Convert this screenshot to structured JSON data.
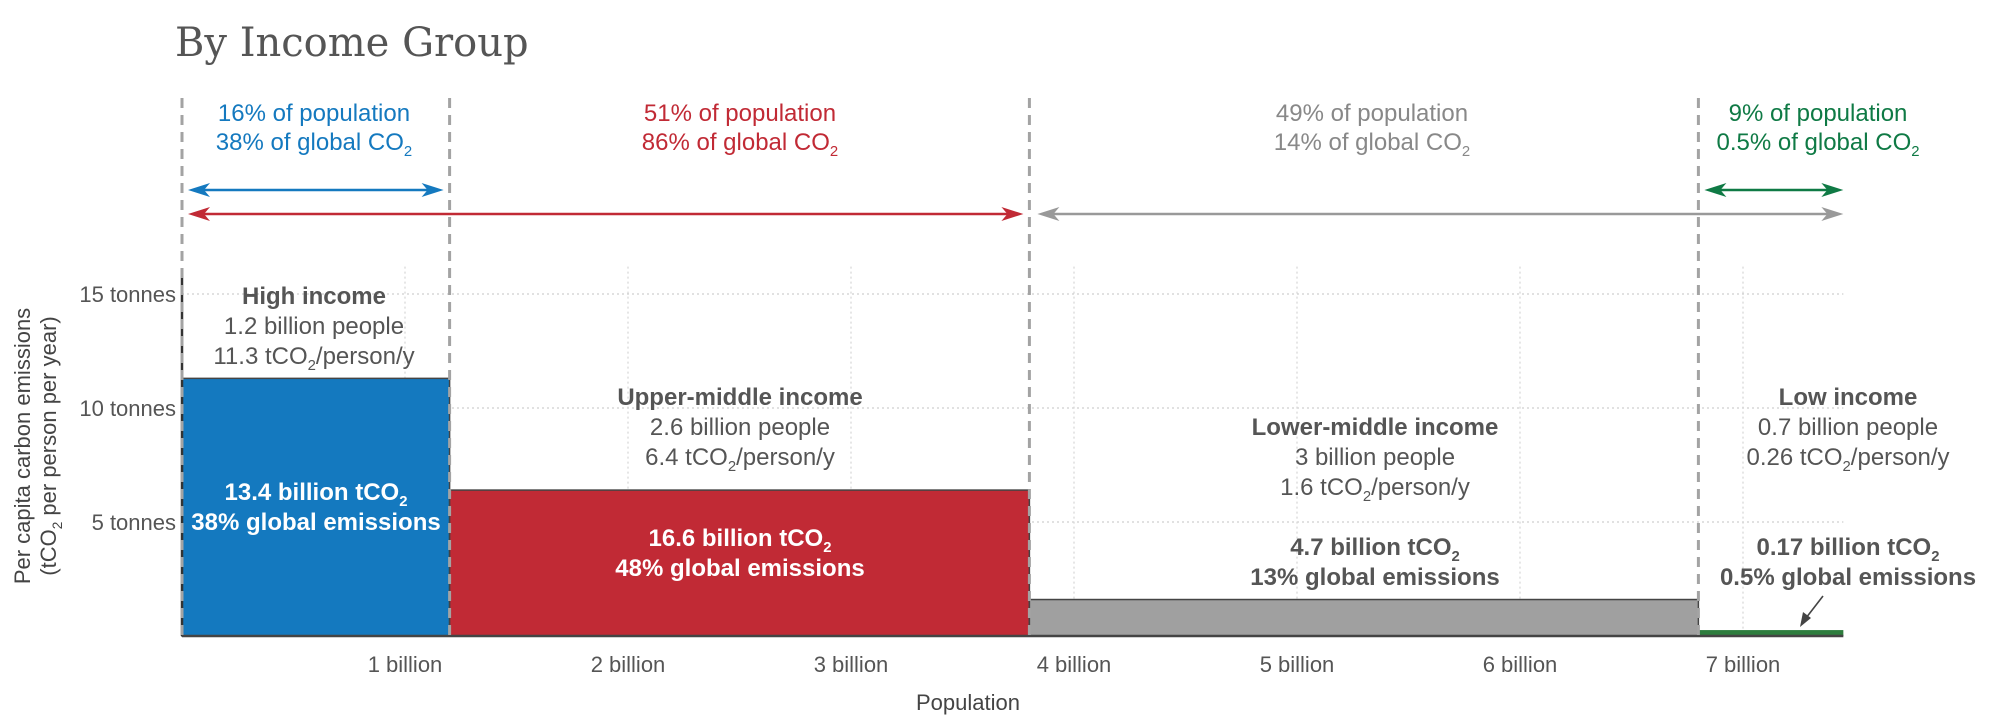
{
  "chart_data": {
    "type": "variable-width bar",
    "title": "By Income Group",
    "xlabel": "Population",
    "ylabel_line1": "Per capita carbon emissions",
    "ylabel_line2": "(tCO₂ per person per year)",
    "xlim": [
      0,
      7.45
    ],
    "ylim": [
      0,
      16
    ],
    "xticks": [
      {
        "value": 1,
        "label": "1 billion"
      },
      {
        "value": 2,
        "label": "2 billion"
      },
      {
        "value": 3,
        "label": "3 billion"
      },
      {
        "value": 4,
        "label": "4 billion"
      },
      {
        "value": 5,
        "label": "5 billion"
      },
      {
        "value": 6,
        "label": "6 billion"
      },
      {
        "value": 7,
        "label": "7 billion"
      }
    ],
    "yticks": [
      {
        "value": 5,
        "label": "5 tonnes"
      },
      {
        "value": 10,
        "label": "10 tonnes"
      },
      {
        "value": 15,
        "label": "15 tonnes"
      }
    ],
    "groups": [
      {
        "name": "High income",
        "people": "1.2 billion people",
        "per_capita_label": "11.3 tCO₂/person/y",
        "population_billion": 1.2,
        "per_capita": 11.3,
        "total_label": "13.4 billion tCO₂",
        "share_label": "38% global emissions",
        "color": "#1479bf",
        "label_color": "#ffffff"
      },
      {
        "name": "Upper-middle income",
        "people": "2.6 billion people",
        "per_capita_label": "6.4 tCO₂/person/y",
        "population_billion": 2.6,
        "per_capita": 6.4,
        "total_label": "16.6 billion tCO₂",
        "share_label": "48% global emissions",
        "color": "#c12a35",
        "label_color": "#ffffff"
      },
      {
        "name": "Lower-middle income",
        "people": "3 billion people",
        "per_capita_label": "1.6 tCO₂/person/y",
        "population_billion": 3.0,
        "per_capita": 1.6,
        "total_label": "4.7 billion tCO₂",
        "share_label": "13% global emissions",
        "color": "#a0a0a0",
        "label_color": "#555555"
      },
      {
        "name": "Low income",
        "people": "0.7 billion people",
        "per_capita_label": "0.26 tCO₂/person/y",
        "population_billion": 0.65,
        "per_capita": 0.26,
        "total_label": "0.17 billion tCO₂",
        "share_label": "0.5% global emissions",
        "color": "#2e7d3e",
        "label_color": "#555555"
      }
    ],
    "population_annotations": [
      {
        "pop": "16% of population",
        "co2": "38% of global CO₂",
        "color": "#1479bf"
      },
      {
        "pop": "51% of population",
        "co2": "86% of global CO₂",
        "color": "#c12a35"
      },
      {
        "pop": "49% of population",
        "co2": "14% of global CO₂",
        "color": "#888888"
      },
      {
        "pop": "9% of population",
        "co2": "0.5% of global CO₂",
        "color": "#0f7a45"
      }
    ]
  }
}
